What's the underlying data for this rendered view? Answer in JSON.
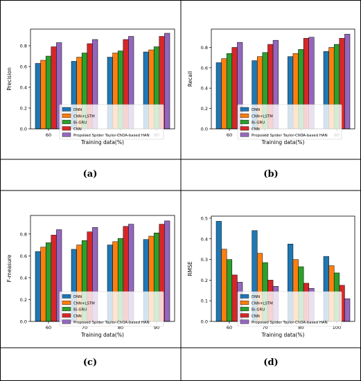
{
  "colors": {
    "series": [
      "#1f77b4",
      "#ff7f0e",
      "#2ca02c",
      "#d62728",
      "#9467bd"
    ],
    "edge": "#000000",
    "border": "#000000"
  },
  "legend_labels": [
    "DNN",
    "CNN+LSTM",
    "Bi-GRU",
    "CNN",
    "Proposed Spider Taylor-ChOA-based HAN"
  ],
  "chart_data": [
    {
      "type": "bar",
      "caption": "(a)",
      "xlabel": "Training data(%)",
      "ylabel": "Precision",
      "categories": [
        "60",
        "70",
        "80",
        "90"
      ],
      "ylim": [
        0,
        0.96
      ],
      "yticks": [
        "0.0",
        "0.2",
        "0.4",
        "0.6",
        "0.8"
      ],
      "legend_position": "center",
      "series": [
        {
          "name": "DNN",
          "values": [
            0.63,
            0.65,
            0.69,
            0.74
          ]
        },
        {
          "name": "CNN+LSTM",
          "values": [
            0.66,
            0.69,
            0.73,
            0.76
          ]
        },
        {
          "name": "Bi-GRU",
          "values": [
            0.7,
            0.73,
            0.75,
            0.79
          ]
        },
        {
          "name": "CNN",
          "values": [
            0.79,
            0.82,
            0.86,
            0.89
          ]
        },
        {
          "name": "Proposed Spider Taylor-ChOA-based HAN",
          "values": [
            0.83,
            0.86,
            0.89,
            0.92
          ]
        }
      ]
    },
    {
      "type": "bar",
      "caption": "(b)",
      "xlabel": "Training data(%)",
      "ylabel": "Recall",
      "categories": [
        "60",
        "70",
        "80",
        "90"
      ],
      "ylim": [
        0,
        0.98
      ],
      "yticks": [
        "0.0",
        "0.2",
        "0.4",
        "0.6",
        "0.8"
      ],
      "legend_position": "center",
      "series": [
        {
          "name": "DNN",
          "values": [
            0.65,
            0.67,
            0.71,
            0.76
          ]
        },
        {
          "name": "CNN+LSTM",
          "values": [
            0.69,
            0.71,
            0.74,
            0.8
          ]
        },
        {
          "name": "Bi-GRU",
          "values": [
            0.74,
            0.75,
            0.78,
            0.83
          ]
        },
        {
          "name": "CNN",
          "values": [
            0.8,
            0.83,
            0.89,
            0.89
          ]
        },
        {
          "name": "Proposed Spider Taylor-ChOA-based HAN",
          "values": [
            0.85,
            0.87,
            0.9,
            0.93
          ]
        }
      ]
    },
    {
      "type": "bar",
      "caption": "(c)",
      "xlabel": "Training data(%)",
      "ylabel": "F-measure",
      "categories": [
        "60",
        "70",
        "80",
        "90"
      ],
      "ylim": [
        0,
        0.97
      ],
      "yticks": [
        "0.0",
        "0.2",
        "0.4",
        "0.6",
        "0.8"
      ],
      "legend_position": "center",
      "series": [
        {
          "name": "DNN",
          "values": [
            0.64,
            0.66,
            0.7,
            0.75
          ]
        },
        {
          "name": "CNN+LSTM",
          "values": [
            0.68,
            0.7,
            0.73,
            0.78
          ]
        },
        {
          "name": "Bi-GRU",
          "values": [
            0.72,
            0.74,
            0.76,
            0.81
          ]
        },
        {
          "name": "CNN",
          "values": [
            0.79,
            0.82,
            0.87,
            0.89
          ]
        },
        {
          "name": "Proposed Spider Taylor-ChOA-based HAN",
          "values": [
            0.84,
            0.86,
            0.89,
            0.92
          ]
        }
      ]
    },
    {
      "type": "bar",
      "caption": "(d)",
      "xlabel": "Training data(%)",
      "ylabel": "RMSE",
      "categories": [
        "60",
        "70",
        "80",
        "100"
      ],
      "ylim": [
        0,
        0.51
      ],
      "yticks": [
        "0.0",
        "0.1",
        "0.2",
        "0.3",
        "0.4",
        "0.5"
      ],
      "legend_position": "lower left",
      "series": [
        {
          "name": "DNN",
          "values": [
            0.485,
            0.44,
            0.375,
            0.315
          ]
        },
        {
          "name": "CNN+LSTM",
          "values": [
            0.35,
            0.33,
            0.3,
            0.27
          ]
        },
        {
          "name": "Bi-GRU",
          "values": [
            0.3,
            0.285,
            0.265,
            0.235
          ]
        },
        {
          "name": "CNN",
          "values": [
            0.225,
            0.2,
            0.185,
            0.175
          ]
        },
        {
          "name": "Proposed Spider Taylor-ChOA-based HAN",
          "values": [
            0.19,
            0.17,
            0.16,
            0.11
          ]
        }
      ]
    }
  ]
}
